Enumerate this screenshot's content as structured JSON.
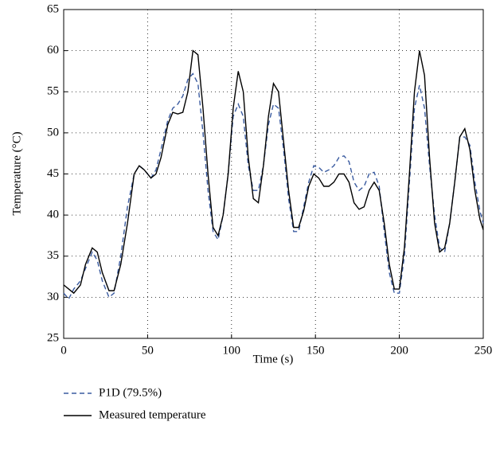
{
  "chart_data": {
    "type": "line",
    "x_label": "Time (s)",
    "y_label": "Temperature (°C)",
    "xlim": [
      0,
      250
    ],
    "ylim": [
      25,
      65
    ],
    "xticks": [
      0,
      50,
      100,
      150,
      200,
      250
    ],
    "yticks": [
      25,
      30,
      35,
      40,
      45,
      50,
      55,
      60,
      65
    ],
    "grid": true,
    "legend": "bottom",
    "x": [
      0,
      3,
      6,
      10,
      13,
      17,
      20,
      23,
      27,
      30,
      34,
      38,
      42,
      45,
      48,
      52,
      55,
      58,
      62,
      65,
      68,
      71,
      74,
      77,
      80,
      83,
      86,
      89,
      92,
      95,
      98,
      101,
      104,
      107,
      110,
      113,
      116,
      119,
      122,
      125,
      128,
      131,
      134,
      137,
      140,
      143,
      146,
      149,
      152,
      155,
      158,
      161,
      164,
      167,
      170,
      173,
      176,
      179,
      182,
      185,
      188,
      191,
      194,
      197,
      200,
      203,
      206,
      209,
      212,
      215,
      218,
      221,
      224,
      227,
      230,
      233,
      236,
      239,
      242,
      245,
      248,
      250
    ],
    "series": [
      {
        "name": "P1D (79.5%)",
        "color": "#3a5ba0",
        "line_style": "dashed",
        "values": [
          30.5,
          29.8,
          31,
          32,
          33.5,
          35.5,
          34.5,
          32,
          30,
          30.5,
          35,
          41,
          45,
          46,
          45.5,
          44.5,
          45.5,
          48,
          51.5,
          53,
          53.5,
          54.5,
          56.5,
          57.2,
          56,
          50,
          43,
          38,
          37,
          40,
          45,
          52,
          53.5,
          52,
          46,
          43,
          43,
          46,
          51,
          53.5,
          53,
          48,
          42,
          38,
          38,
          41,
          44,
          46,
          45.8,
          45.2,
          45.5,
          46,
          47,
          47.2,
          46.5,
          44,
          43,
          43.5,
          45,
          45.2,
          43.5,
          38,
          33,
          30.5,
          30.5,
          35,
          44,
          53,
          55.8,
          53,
          46,
          40,
          36,
          35.5,
          39,
          44,
          49.5,
          49.5,
          48.5,
          44,
          40.5,
          39
        ]
      },
      {
        "name": "Measured temperature",
        "color": "#000000",
        "line_style": "solid",
        "values": [
          31.5,
          31,
          30.5,
          31.5,
          34,
          36,
          35.5,
          33,
          30.8,
          30.8,
          34,
          39,
          45,
          46,
          45.5,
          44.5,
          45,
          47,
          51,
          52.5,
          52.3,
          52.5,
          55,
          60,
          59.5,
          53,
          45,
          38.5,
          37.5,
          40,
          45,
          53,
          57.5,
          55,
          47,
          42,
          41.5,
          46,
          52,
          56,
          55,
          49,
          43,
          38.5,
          38.5,
          40.5,
          43.5,
          45,
          44.5,
          43.5,
          43.5,
          44,
          45,
          45,
          44,
          41.5,
          40.7,
          41,
          43,
          44,
          43,
          39,
          34,
          31,
          31,
          36,
          45,
          55,
          60,
          57,
          47,
          39,
          35.5,
          36,
          39,
          44,
          49.5,
          50.5,
          48,
          43,
          39.5,
          38.2
        ]
      }
    ]
  }
}
